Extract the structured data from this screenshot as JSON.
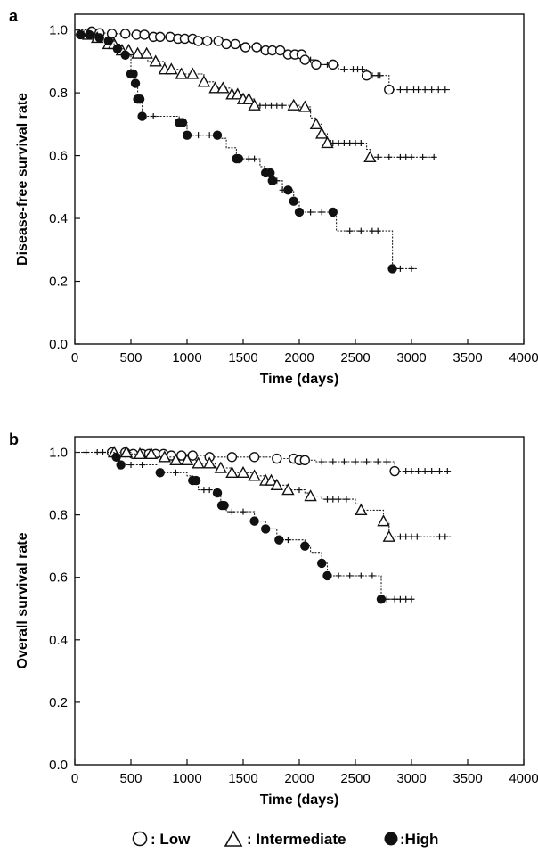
{
  "legend": {
    "items": [
      {
        "key": "low",
        "marker": "open-circle",
        "label": ": Low"
      },
      {
        "key": "intermediate",
        "marker": "open-triangle",
        "label": ": Intermediate"
      },
      {
        "key": "high",
        "marker": "filled-circle",
        "label": ":High"
      }
    ]
  },
  "chart_data": [
    {
      "panel": "a",
      "type": "line",
      "step": true,
      "xlabel": "Time (days)",
      "ylabel": "Disease-free survival rate",
      "xlim": [
        0,
        4000
      ],
      "ylim": [
        0,
        1.05
      ],
      "xticks": [
        0,
        500,
        1000,
        1500,
        2000,
        2500,
        3000,
        3500,
        4000
      ],
      "yticks": [
        0.0,
        0.2,
        0.4,
        0.6,
        0.8,
        1.0
      ],
      "ytick_labels": [
        "0.0",
        "0.2",
        "0.4",
        "0.6",
        "0.8",
        "1.0"
      ],
      "series": [
        {
          "key": "low",
          "marker": "open-circle",
          "points": [
            [
              0,
              1.0
            ],
            [
              120,
              0.995
            ],
            [
              200,
              0.99
            ],
            [
              320,
              0.988
            ],
            [
              500,
              0.985
            ],
            [
              700,
              0.978
            ],
            [
              900,
              0.972
            ],
            [
              1100,
              0.965
            ],
            [
              1300,
              0.955
            ],
            [
              1500,
              0.945
            ],
            [
              1700,
              0.935
            ],
            [
              1900,
              0.922
            ],
            [
              2050,
              0.905
            ],
            [
              2150,
              0.89
            ],
            [
              2350,
              0.875
            ],
            [
              2600,
              0.855
            ],
            [
              2800,
              0.81
            ],
            [
              3350,
              0.81
            ]
          ],
          "events": [
            150,
            220,
            330,
            450,
            550,
            620,
            700,
            760,
            850,
            920,
            980,
            1050,
            1100,
            1180,
            1280,
            1350,
            1430,
            1520,
            1620,
            1700,
            1760,
            1830,
            1900,
            1960,
            2020,
            2050,
            2150,
            2300,
            2600,
            2800
          ],
          "censored": [
            2100,
            2180,
            2250,
            2400,
            2480,
            2520,
            2560,
            2650,
            2700,
            2720,
            2900,
            2960,
            3020,
            3060,
            3120,
            3180,
            3240,
            3300
          ]
        },
        {
          "key": "intermediate",
          "marker": "open-triangle",
          "points": [
            [
              0,
              1.0
            ],
            [
              80,
              0.985
            ],
            [
              200,
              0.975
            ],
            [
              300,
              0.955
            ],
            [
              400,
              0.935
            ],
            [
              500,
              0.925
            ],
            [
              650,
              0.9
            ],
            [
              800,
              0.875
            ],
            [
              950,
              0.86
            ],
            [
              1150,
              0.835
            ],
            [
              1250,
              0.815
            ],
            [
              1400,
              0.795
            ],
            [
              1500,
              0.78
            ],
            [
              1600,
              0.76
            ],
            [
              2000,
              0.755
            ],
            [
              2100,
              0.72
            ],
            [
              2150,
              0.7
            ],
            [
              2200,
              0.67
            ],
            [
              2250,
              0.64
            ],
            [
              2600,
              0.62
            ],
            [
              2630,
              0.595
            ],
            [
              3200,
              0.595
            ]
          ],
          "events": [
            120,
            200,
            300,
            350,
            420,
            480,
            560,
            640,
            720,
            800,
            860,
            950,
            1050,
            1150,
            1250,
            1320,
            1400,
            1450,
            1500,
            1550,
            1600,
            1950,
            2050,
            2150,
            2200,
            2250,
            2630
          ],
          "censored": [
            1650,
            1700,
            1750,
            1800,
            1850,
            2280,
            2300,
            2350,
            2400,
            2450,
            2500,
            2550,
            2700,
            2800,
            2900,
            2950,
            3000,
            3100,
            3200
          ]
        },
        {
          "key": "high",
          "marker": "filled-circle",
          "points": [
            [
              0,
              0.985
            ],
            [
              150,
              0.975
            ],
            [
              250,
              0.965
            ],
            [
              350,
              0.94
            ],
            [
              430,
              0.92
            ],
            [
              500,
              0.86
            ],
            [
              530,
              0.83
            ],
            [
              560,
              0.78
            ],
            [
              600,
              0.725
            ],
            [
              900,
              0.725
            ],
            [
              930,
              0.705
            ],
            [
              1000,
              0.665
            ],
            [
              1300,
              0.655
            ],
            [
              1350,
              0.625
            ],
            [
              1440,
              0.59
            ],
            [
              1650,
              0.565
            ],
            [
              1700,
              0.545
            ],
            [
              1750,
              0.52
            ],
            [
              1850,
              0.49
            ],
            [
              1950,
              0.455
            ],
            [
              2000,
              0.42
            ],
            [
              2300,
              0.42
            ],
            [
              2330,
              0.36
            ],
            [
              2800,
              0.36
            ],
            [
              2830,
              0.24
            ],
            [
              3050,
              0.24
            ]
          ],
          "events": [
            50,
            130,
            220,
            300,
            380,
            450,
            500,
            520,
            540,
            560,
            580,
            600,
            930,
            960,
            1000,
            1270,
            1440,
            1460,
            1700,
            1740,
            1760,
            1900,
            1950,
            2000,
            2300,
            2830
          ],
          "censored": [
            700,
            1100,
            1200,
            1550,
            1600,
            1850,
            1800,
            2100,
            2200,
            2450,
            2550,
            2650,
            2700,
            2900,
            3000
          ]
        }
      ]
    },
    {
      "panel": "b",
      "type": "line",
      "step": true,
      "xlabel": "Time (days)",
      "ylabel": "Overall survival rate",
      "xlim": [
        0,
        4000
      ],
      "ylim": [
        0,
        1.05
      ],
      "xticks": [
        0,
        500,
        1000,
        1500,
        2000,
        2500,
        3000,
        3500,
        4000
      ],
      "yticks": [
        0.0,
        0.2,
        0.4,
        0.6,
        0.8,
        1.0
      ],
      "ytick_labels": [
        "0.0",
        "0.2",
        "0.4",
        "0.6",
        "0.8",
        "1.0"
      ],
      "series": [
        {
          "key": "low",
          "marker": "open-circle",
          "points": [
            [
              0,
              1.0
            ],
            [
              300,
              1.0
            ],
            [
              500,
              0.995
            ],
            [
              800,
              0.99
            ],
            [
              1200,
              0.985
            ],
            [
              1800,
              0.98
            ],
            [
              2000,
              0.975
            ],
            [
              2150,
              0.97
            ],
            [
              2800,
              0.97
            ],
            [
              2850,
              0.94
            ],
            [
              3350,
              0.94
            ]
          ],
          "events": [
            330,
            450,
            520,
            600,
            660,
            720,
            790,
            860,
            950,
            1050,
            1200,
            1400,
            1600,
            1800,
            1950,
            2000,
            2050,
            2850
          ],
          "censored": [
            2200,
            2300,
            2400,
            2500,
            2600,
            2700,
            2780,
            2950,
            3000,
            3060,
            3120,
            3180,
            3250,
            3320
          ]
        },
        {
          "key": "intermediate",
          "marker": "open-triangle",
          "points": [
            [
              0,
              1.0
            ],
            [
              400,
              1.0
            ],
            [
              500,
              0.995
            ],
            [
              700,
              0.985
            ],
            [
              900,
              0.975
            ],
            [
              1100,
              0.965
            ],
            [
              1250,
              0.95
            ],
            [
              1400,
              0.935
            ],
            [
              1600,
              0.925
            ],
            [
              1700,
              0.91
            ],
            [
              1800,
              0.895
            ],
            [
              1900,
              0.88
            ],
            [
              2050,
              0.87
            ],
            [
              2100,
              0.86
            ],
            [
              2200,
              0.85
            ],
            [
              2500,
              0.835
            ],
            [
              2550,
              0.815
            ],
            [
              2750,
              0.78
            ],
            [
              2800,
              0.73
            ],
            [
              3350,
              0.73
            ]
          ],
          "events": [
            350,
            460,
            580,
            680,
            800,
            900,
            1000,
            1100,
            1200,
            1300,
            1400,
            1500,
            1600,
            1700,
            1750,
            1800,
            1900,
            2100,
            2550,
            2750,
            2800
          ],
          "censored": [
            2000,
            2250,
            2300,
            2350,
            2420,
            2900,
            2950,
            3000,
            3050,
            3250,
            3300
          ]
        },
        {
          "key": "high",
          "marker": "filled-circle",
          "points": [
            [
              0,
              1.0
            ],
            [
              300,
              1.0
            ],
            [
              350,
              0.985
            ],
            [
              400,
              0.96
            ],
            [
              750,
              0.935
            ],
            [
              1000,
              0.925
            ],
            [
              1050,
              0.91
            ],
            [
              1100,
              0.88
            ],
            [
              1250,
              0.87
            ],
            [
              1280,
              0.86
            ],
            [
              1300,
              0.83
            ],
            [
              1350,
              0.81
            ],
            [
              1600,
              0.78
            ],
            [
              1700,
              0.755
            ],
            [
              1800,
              0.72
            ],
            [
              2050,
              0.7
            ],
            [
              2100,
              0.68
            ],
            [
              2200,
              0.645
            ],
            [
              2250,
              0.605
            ],
            [
              2700,
              0.605
            ],
            [
              2730,
              0.53
            ],
            [
              3000,
              0.53
            ]
          ],
          "events": [
            370,
            410,
            760,
            1050,
            1080,
            1270,
            1310,
            1330,
            1600,
            1700,
            1820,
            2050,
            2200,
            2250,
            2730
          ],
          "censored": [
            100,
            200,
            250,
            500,
            600,
            900,
            1150,
            1200,
            1400,
            1500,
            1900,
            2350,
            2450,
            2550,
            2650,
            2780,
            2850,
            2900,
            2950,
            3000
          ]
        }
      ]
    }
  ]
}
